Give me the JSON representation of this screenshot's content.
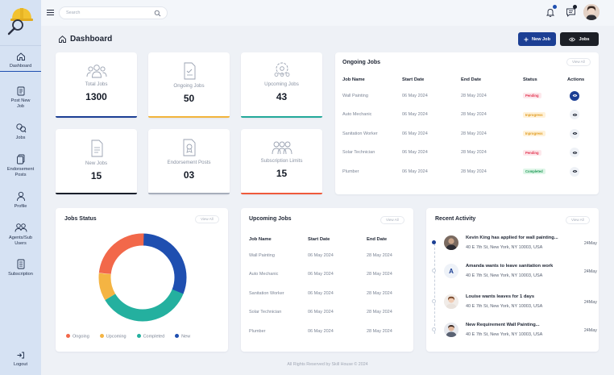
{
  "topbar": {
    "search_placeholder": "Search"
  },
  "sidebar": {
    "items": [
      {
        "label": "Dashboard"
      },
      {
        "label": "Post New Job"
      },
      {
        "label": "Jobs"
      },
      {
        "label": "Endorsement Posts"
      },
      {
        "label": "Profile"
      },
      {
        "label": "Agents/Sub Users"
      },
      {
        "label": "Subscription"
      }
    ],
    "logout": "Logout"
  },
  "header": {
    "title": "Dashboard",
    "new_job_label": "New Job",
    "jobs_label": "Jobs"
  },
  "stats": [
    {
      "label": "Total Jobs",
      "value": "1300",
      "color": "#1c3f94"
    },
    {
      "label": "Ongoing Jobs",
      "value": "50",
      "color": "#f2b43c"
    },
    {
      "label": "Upcoming Jobs",
      "value": "43",
      "color": "#23a99a"
    },
    {
      "label": "New Jobs",
      "value": "15",
      "color": "#1a1f2b"
    },
    {
      "label": "Endorsement Posts",
      "value": "03",
      "color": "#a7aebb"
    },
    {
      "label": "Subscription Limits",
      "value": "15",
      "color": "#ef5a3c"
    }
  ],
  "ongoing": {
    "title": "Ongoing Jobs",
    "view_all": "View All",
    "columns": [
      "Job Name",
      "Start Date",
      "End Date",
      "Status",
      "Actions"
    ],
    "rows": [
      {
        "name": "Wall Painting",
        "start": "06 May 2024",
        "end": "28 May 2024",
        "status": "Pending"
      },
      {
        "name": "Auto Mechanic",
        "start": "06 May 2024",
        "end": "28 May 2024",
        "status": "Inprogress"
      },
      {
        "name": "Sanitation Worker",
        "start": "06 May 2024",
        "end": "28 May 2024",
        "status": "Inprogress"
      },
      {
        "name": "Solar Technician",
        "start": "06 May 2024",
        "end": "28 May 2024",
        "status": "Pending"
      },
      {
        "name": "Plumber",
        "start": "06 May 2024",
        "end": "28 May 2024",
        "status": "Completed"
      }
    ]
  },
  "jobs_status": {
    "title": "Jobs Status",
    "view_all": "View All",
    "legend": [
      {
        "label": "Ongoing",
        "color": "#f2684a"
      },
      {
        "label": "Upcoming",
        "color": "#f4b443"
      },
      {
        "label": "Completed",
        "color": "#24b09f"
      },
      {
        "label": "New",
        "color": "#1f4fb0"
      }
    ]
  },
  "upcoming": {
    "title": "Upcoming Jobs",
    "view_all": "View All",
    "columns": [
      "Job Name",
      "Start Date",
      "End Date"
    ],
    "rows": [
      {
        "name": "Wall Painting",
        "start": "06 May 2024",
        "end": "28 May 2024"
      },
      {
        "name": "Auto Mechanic",
        "start": "06 May 2024",
        "end": "28 May 2024"
      },
      {
        "name": "Sanitation Worker",
        "start": "06 May 2024",
        "end": "28 May 2024"
      },
      {
        "name": "Solar Technician",
        "start": "06 May 2024",
        "end": "28 May 2024"
      },
      {
        "name": "Plumber",
        "start": "06 May 2024",
        "end": "28 May 2024"
      }
    ]
  },
  "activity": {
    "title": "Recent Activity",
    "view_all": "View All",
    "items": [
      {
        "text": "Kevin King has applied for wall painting...",
        "address": "40 E 7th St, New York, NY 10003, USA",
        "date": "24May",
        "avatar_letter": ""
      },
      {
        "text": "Amanda wants to leave sanitation work",
        "address": "40 E 7th St, New York, NY 10003, USA",
        "date": "24May",
        "avatar_letter": "A"
      },
      {
        "text": "Louise wants leaves for 1 days",
        "address": "40 E 7th St, New York, NY 10003, USA",
        "date": "24May",
        "avatar_letter": ""
      },
      {
        "text": "New Requirement Wall Painting...",
        "address": "40 E 7th St, New York, NY 10003, USA",
        "date": "24May",
        "avatar_letter": ""
      }
    ]
  },
  "footer": {
    "text": "All Rights Reserved by Skill House © 2024"
  }
}
